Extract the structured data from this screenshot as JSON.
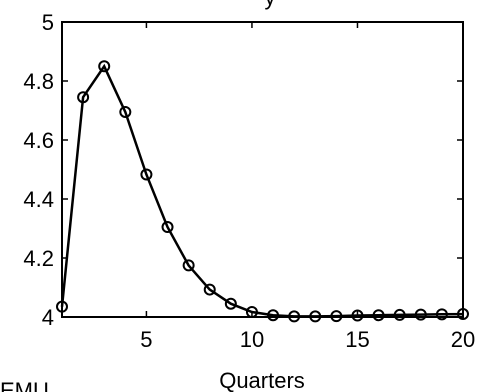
{
  "chart_data": {
    "type": "line",
    "xlabel": "Quarters",
    "x_ticks": [
      "5",
      "10",
      "15",
      "20"
    ],
    "y_ticks": [
      "4",
      "4.2",
      "4.4",
      "4.6",
      "4.8",
      "5"
    ],
    "xlim": [
      1,
      20
    ],
    "ylim": [
      4,
      5
    ],
    "grid": false,
    "marker": "circle",
    "line_color": "#000000",
    "series": [
      {
        "x": [
          1,
          2,
          3,
          4,
          5,
          6,
          7,
          8,
          9,
          10,
          11,
          12,
          13,
          14,
          15,
          16,
          17,
          18,
          19,
          20
        ],
        "values": [
          4.035,
          4.745,
          4.85,
          4.695,
          4.483,
          4.305,
          4.175,
          4.093,
          4.045,
          4.017,
          4.006,
          4.002,
          4.002,
          4.003,
          4.005,
          4.006,
          4.007,
          4.008,
          4.009,
          4.01
        ]
      }
    ],
    "partial_title": "y",
    "partial_footer_label": "EMU"
  }
}
